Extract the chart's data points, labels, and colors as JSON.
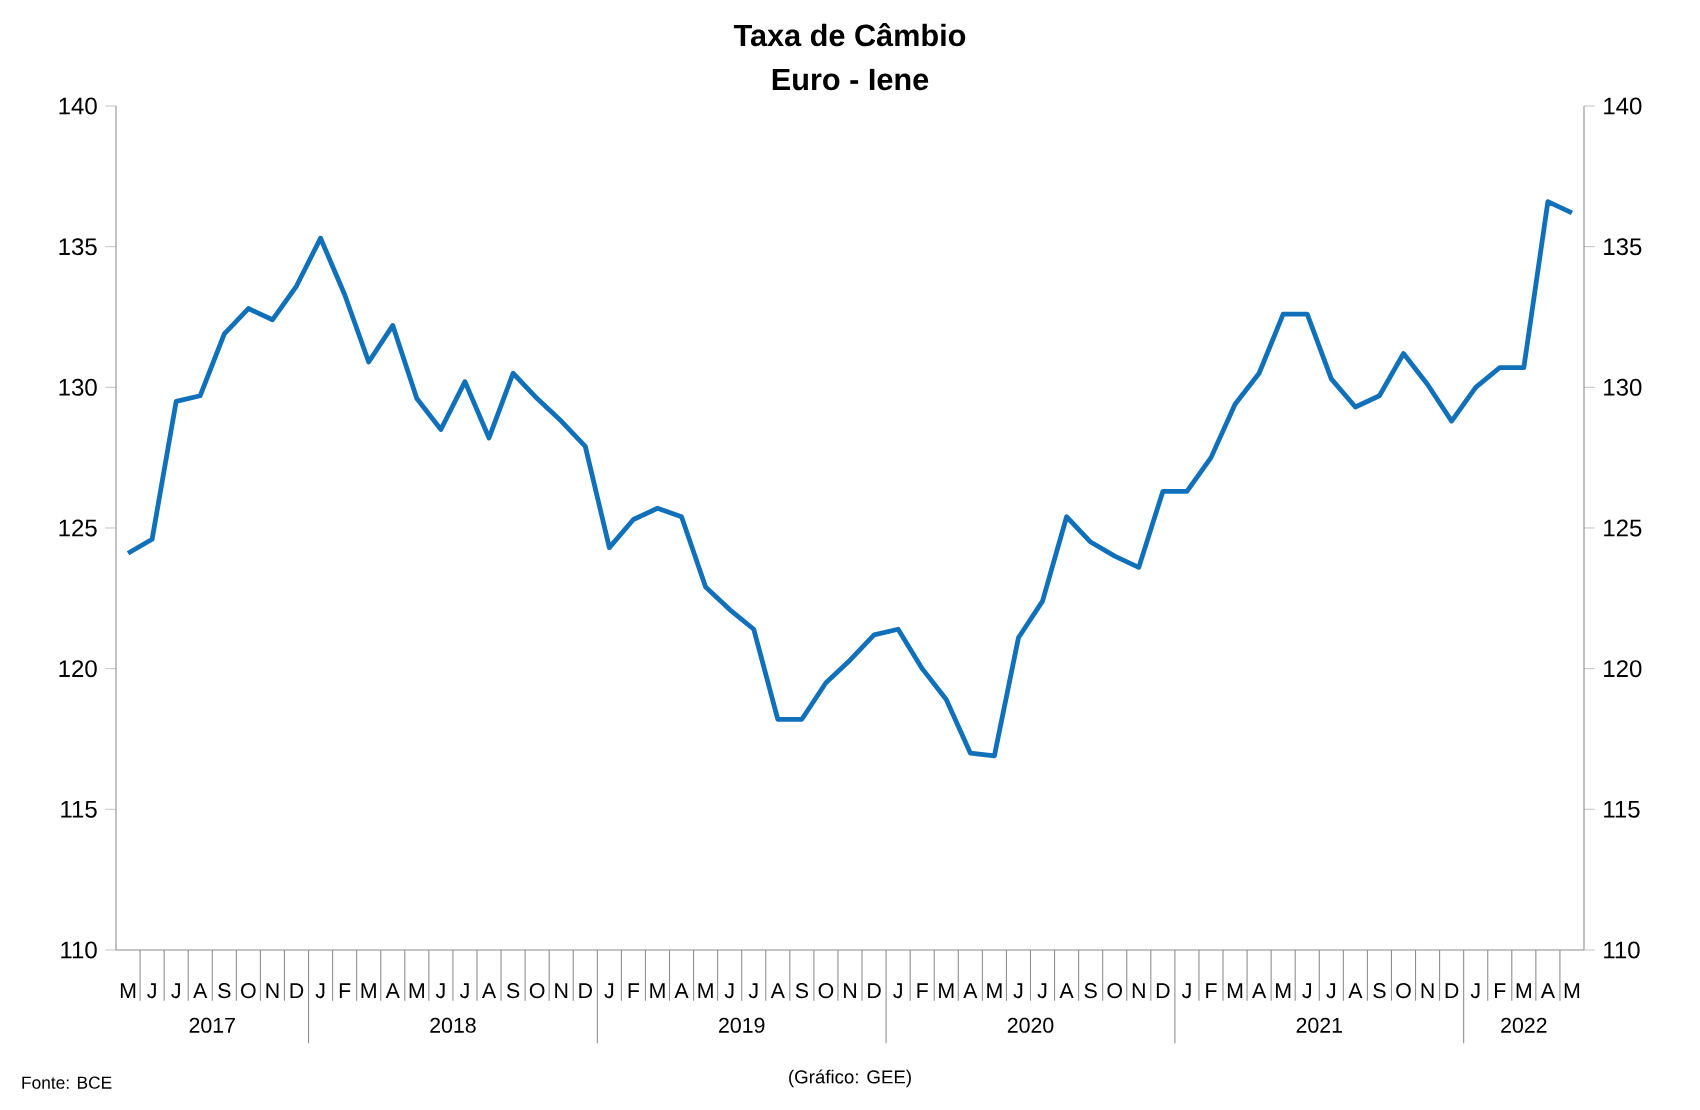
{
  "chart_data": {
    "type": "line",
    "title": "Taxa de Câmbio",
    "subtitle": "Euro - Iene",
    "categories": [
      "M",
      "J",
      "J",
      "A",
      "S",
      "O",
      "N",
      "D",
      "J",
      "F",
      "M",
      "A",
      "M",
      "J",
      "J",
      "A",
      "S",
      "O",
      "N",
      "D",
      "J",
      "F",
      "M",
      "A",
      "M",
      "J",
      "J",
      "A",
      "S",
      "O",
      "N",
      "D",
      "J",
      "F",
      "M",
      "A",
      "M",
      "J",
      "J",
      "A",
      "S",
      "O",
      "N",
      "D",
      "J",
      "F",
      "M",
      "A",
      "M",
      "J",
      "J",
      "A",
      "S",
      "O",
      "N",
      "D",
      "J",
      "F",
      "M",
      "A",
      "M"
    ],
    "values": [
      124.1,
      124.6,
      129.5,
      129.7,
      131.9,
      132.8,
      132.4,
      133.6,
      135.3,
      133.3,
      130.9,
      132.2,
      129.6,
      128.5,
      130.2,
      128.2,
      130.5,
      129.6,
      128.8,
      127.9,
      124.3,
      125.3,
      125.7,
      125.4,
      122.9,
      122.1,
      121.4,
      118.2,
      118.2,
      119.5,
      120.3,
      121.2,
      121.4,
      120.0,
      118.9,
      117.0,
      116.9,
      121.1,
      122.4,
      125.4,
      124.5,
      124.0,
      123.6,
      126.3,
      126.3,
      127.5,
      129.4,
      130.5,
      132.6,
      132.6,
      130.3,
      129.3,
      129.7,
      131.2,
      130.1,
      128.8,
      130.0,
      130.7,
      130.7,
      136.6,
      136.2
    ],
    "color": "#1170ba",
    "line_style": "solid",
    "grid": false,
    "ylim": [
      110,
      140
    ],
    "yticks": [
      110,
      115,
      120,
      125,
      130,
      135,
      140
    ],
    "y2lim": [
      110,
      140
    ],
    "y2ticks": [
      110,
      115,
      120,
      125,
      130,
      135,
      140
    ],
    "annotations": [
      "2017",
      "2018",
      "2019",
      "2020",
      "2021",
      "2022",
      "Fonte: BCE",
      "(Gráfico: GEE)"
    ]
  }
}
